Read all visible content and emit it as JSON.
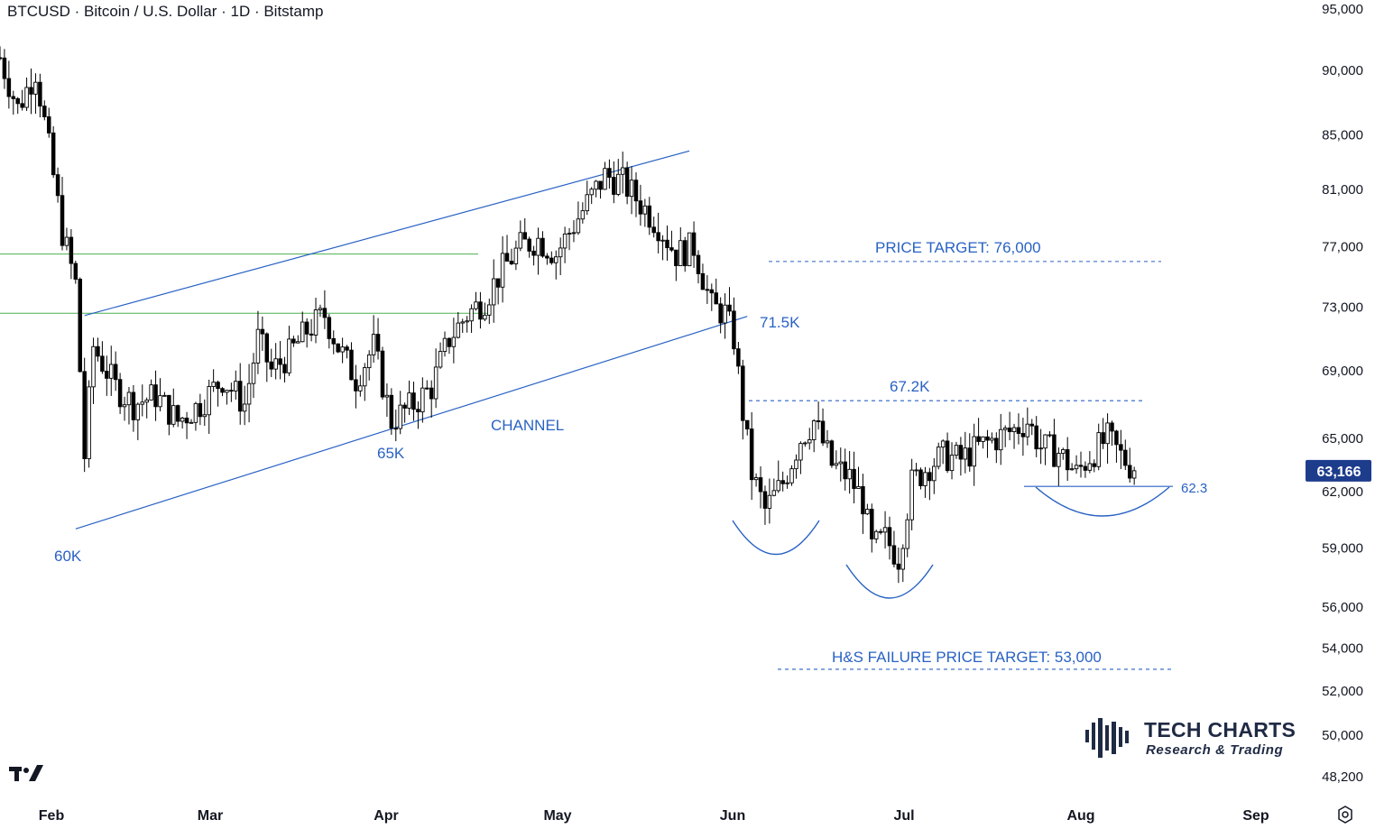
{
  "header": {
    "title": "BTCUSD · Bitcoin / U.S. Dollar · 1D · Bitstamp"
  },
  "brand": {
    "name": "TECH CHARTS",
    "tagline": "Research & Trading"
  },
  "colors": {
    "up_candle": "#ffffff",
    "down_candle": "#000000",
    "candle_outline": "#000000",
    "annotation_blue": "#2962c4",
    "horizontal_green": "#4caf50",
    "last_price_badge": "#1e3c8c",
    "axis_text": "#131722"
  },
  "icons": {
    "logo": "tradingview-logo-icon",
    "settings": "gear-icon"
  },
  "chart_data": {
    "type": "candlestick",
    "symbol": "BTCUSD",
    "interval": "1D",
    "exchange": "Bitstamp",
    "price_scale": "log",
    "y_ticks": [
      95000,
      90000,
      85000,
      81000,
      77000,
      73000,
      69000,
      65000,
      62000,
      59000,
      56000,
      54000,
      52000,
      50000,
      48200
    ],
    "x_ticks": [
      "Feb",
      "Mar",
      "Apr",
      "May",
      "Jun",
      "Jul",
      "Aug",
      "Sep"
    ],
    "last_price": 63166,
    "last_price_label": "63,166",
    "close_path": [
      [
        0,
        91000
      ],
      [
        4,
        87000
      ],
      [
        8,
        90000
      ],
      [
        11,
        84000
      ],
      [
        14,
        78000
      ],
      [
        17,
        74500
      ],
      [
        19,
        64000
      ],
      [
        21,
        70500
      ],
      [
        26,
        68000
      ],
      [
        30,
        67000
      ],
      [
        35,
        67500
      ],
      [
        40,
        66000
      ],
      [
        45,
        67000
      ],
      [
        50,
        68500
      ],
      [
        55,
        67000
      ],
      [
        58,
        71000
      ],
      [
        61,
        69000
      ],
      [
        65,
        70000
      ],
      [
        69,
        71500
      ],
      [
        73,
        72500
      ],
      [
        76,
        70500
      ],
      [
        80,
        68500
      ],
      [
        84,
        70500
      ],
      [
        88,
        66000
      ],
      [
        93,
        67000
      ],
      [
        97,
        68000
      ],
      [
        101,
        71000
      ],
      [
        105,
        72500
      ],
      [
        109,
        73500
      ],
      [
        113,
        75500
      ],
      [
        117,
        77000
      ],
      [
        121,
        77500
      ],
      [
        125,
        76500
      ],
      [
        129,
        78500
      ],
      [
        133,
        80500
      ],
      [
        136,
        82000
      ],
      [
        140,
        81500
      ],
      [
        144,
        80000
      ],
      [
        148,
        78500
      ],
      [
        152,
        76500
      ],
      [
        156,
        77000
      ],
      [
        158,
        75000
      ],
      [
        160,
        73000
      ],
      [
        163,
        72600
      ],
      [
        165,
        71000
      ],
      [
        167,
        66500
      ],
      [
        169,
        63000
      ],
      [
        172,
        61000
      ],
      [
        176,
        62500
      ],
      [
        180,
        65000
      ],
      [
        183,
        66000
      ],
      [
        187,
        63500
      ],
      [
        191,
        62800
      ],
      [
        194,
        61500
      ],
      [
        196,
        59000
      ],
      [
        199,
        59500
      ],
      [
        202,
        58500
      ],
      [
        205,
        62500
      ],
      [
        209,
        63500
      ],
      [
        212,
        64000
      ],
      [
        216,
        63800
      ],
      [
        220,
        64500
      ],
      [
        224,
        65000
      ],
      [
        228,
        65500
      ],
      [
        231,
        66000
      ],
      [
        234,
        64500
      ],
      [
        238,
        64200
      ],
      [
        242,
        63000
      ],
      [
        245,
        64000
      ],
      [
        249,
        65000
      ],
      [
        252,
        64000
      ],
      [
        255,
        63200
      ]
    ],
    "channel": {
      "upper": [
        [
          17,
          72300
        ],
        [
          155,
          83800
        ]
      ],
      "lower": [
        [
          17,
          60000
        ],
        [
          168,
          72400
        ]
      ]
    },
    "horizontal_levels": [
      76500,
      72600
    ],
    "target_levels": [
      {
        "label": "PRICE TARGET: 76,000",
        "price": 76000
      },
      {
        "label": "H&S FAILURE PRICE TARGET: 53,000",
        "price": 53000
      }
    ],
    "neckline_levels": [
      {
        "label": "67.2K",
        "price": 67200
      },
      {
        "label": "62.3",
        "price": 62300
      }
    ],
    "annotations": [
      {
        "text": "60K",
        "date_index": 12,
        "price": 58500
      },
      {
        "text": "65K",
        "date_index": 86,
        "price": 63500
      },
      {
        "text": "CHANNEL",
        "date_index": 117,
        "price": 66000
      },
      {
        "text": "71.5K",
        "date_index": 177,
        "price": 71700
      }
    ]
  }
}
